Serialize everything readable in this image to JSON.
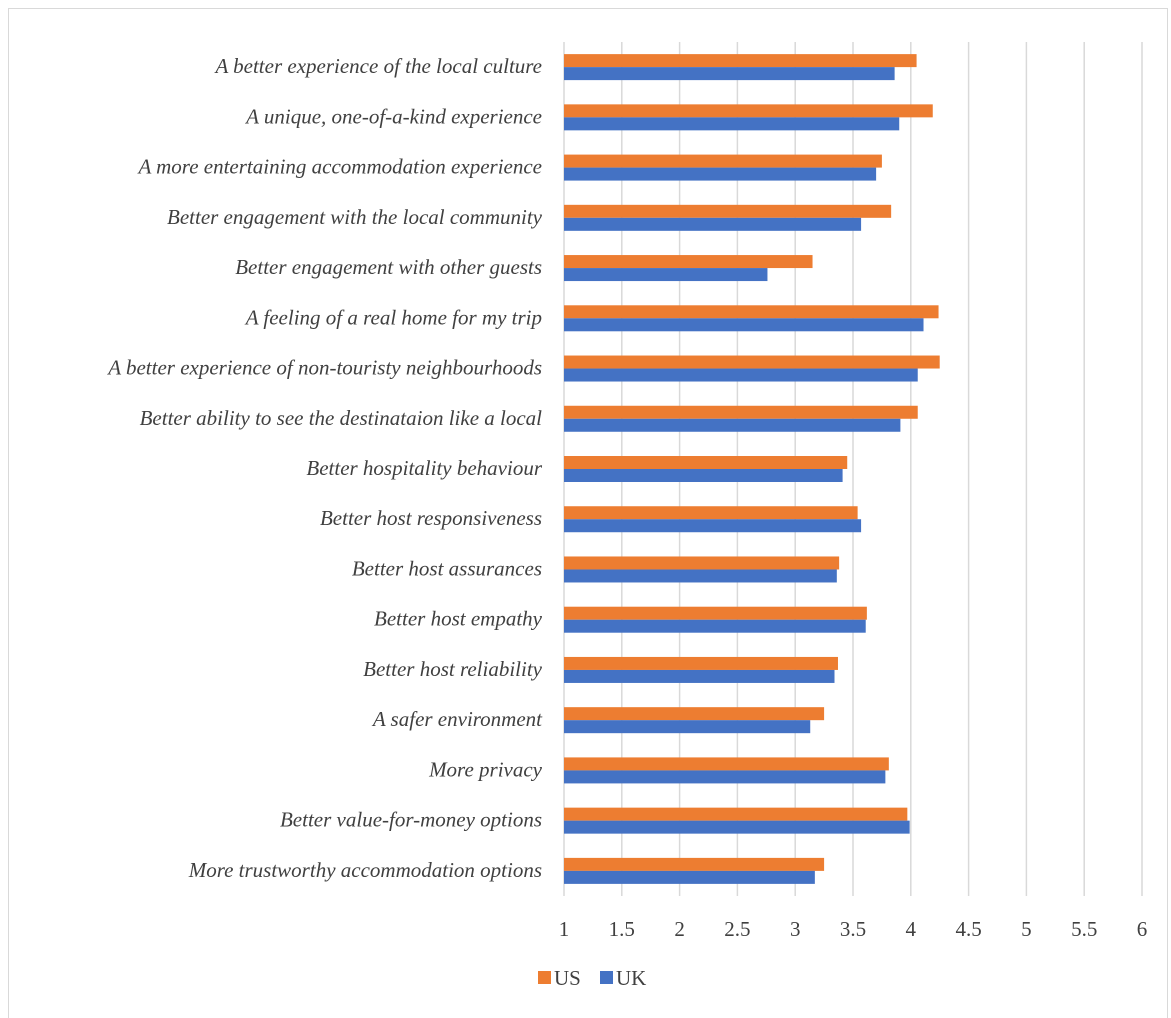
{
  "chart_data": {
    "type": "bar",
    "orientation": "horizontal",
    "title": "",
    "xlabel": "",
    "ylabel": "",
    "xlim": [
      1,
      6
    ],
    "x_ticks": [
      "1",
      "1.5",
      "2",
      "2.5",
      "3",
      "3.5",
      "4",
      "4.5",
      "5",
      "5.5",
      "6"
    ],
    "grid": true,
    "legend_position": "bottom",
    "categories": [
      "A better experience of the local culture",
      "A unique, one-of-a-kind experience",
      "A more entertaining accommodation experience",
      "Better engagement with the local community",
      "Better engagement with other guests",
      "A feeling of a real home for my trip",
      "A better experience of non-touristy neighbourhoods",
      "Better ability to see the destinataion like a local",
      "Better hospitality behaviour",
      "Better host responsiveness",
      "Better host assurances",
      "Better host empathy",
      "Better host reliability",
      "A safer environment",
      "More privacy",
      "Better value-for-money options",
      "More trustworthy accommodation options"
    ],
    "series": [
      {
        "name": "US",
        "color": "#ED7D31",
        "values": [
          4.05,
          4.19,
          3.75,
          3.83,
          3.15,
          4.24,
          4.25,
          4.06,
          3.45,
          3.54,
          3.38,
          3.62,
          3.37,
          3.25,
          3.81,
          3.97,
          3.25
        ]
      },
      {
        "name": "UK",
        "color": "#4472C4",
        "values": [
          3.86,
          3.9,
          3.7,
          3.57,
          2.76,
          4.11,
          4.06,
          3.91,
          3.41,
          3.57,
          3.36,
          3.61,
          3.34,
          3.13,
          3.78,
          3.99,
          3.17
        ]
      }
    ]
  }
}
